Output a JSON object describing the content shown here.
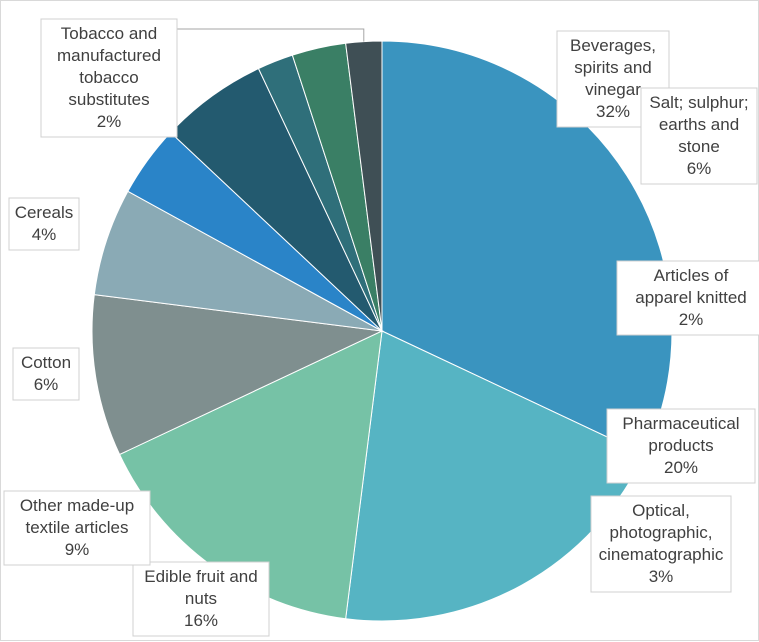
{
  "chart_data": {
    "type": "pie",
    "title": "",
    "start_angle_deg": 0,
    "direction": "clockwise",
    "slices": [
      {
        "label_lines": [
          "Beverages,",
          "spirits and",
          "vinegar"
        ],
        "percent": 32,
        "value_label": "32%",
        "color": "#3a94bf"
      },
      {
        "label_lines": [
          "Pharmaceutical",
          "products"
        ],
        "percent": 20,
        "value_label": "20%",
        "color": "#56b4c3"
      },
      {
        "label_lines": [
          "Edible fruit and",
          "nuts"
        ],
        "percent": 16,
        "value_label": "16%",
        "color": "#76c2a6"
      },
      {
        "label_lines": [
          "Other made-up",
          "textile articles"
        ],
        "percent": 9,
        "value_label": "9%",
        "color": "#7f8f8f"
      },
      {
        "label_lines": [
          "Cotton"
        ],
        "percent": 6,
        "value_label": "6%",
        "color": "#8aaab5"
      },
      {
        "label_lines": [
          "Cereals"
        ],
        "percent": 4,
        "value_label": "4%",
        "color": "#2a84c8"
      },
      {
        "label_lines": [
          "Salt; sulphur;",
          "earths and",
          "stone"
        ],
        "percent": 6,
        "value_label": "6%",
        "color": "#235a6f"
      },
      {
        "label_lines": [
          "Articles of",
          "apparel knitted"
        ],
        "percent": 2,
        "value_label": "2%",
        "color": "#2f6f7a"
      },
      {
        "label_lines": [
          "Optical,",
          "photographic,",
          "cinematographic"
        ],
        "percent": 3,
        "value_label": "3%",
        "color": "#3a7f65"
      },
      {
        "label_lines": [
          "Tobacco and",
          "manufactured",
          "tobacco",
          "substitutes"
        ],
        "percent": 2,
        "value_label": "2%",
        "color": "#3f4f55"
      }
    ]
  }
}
